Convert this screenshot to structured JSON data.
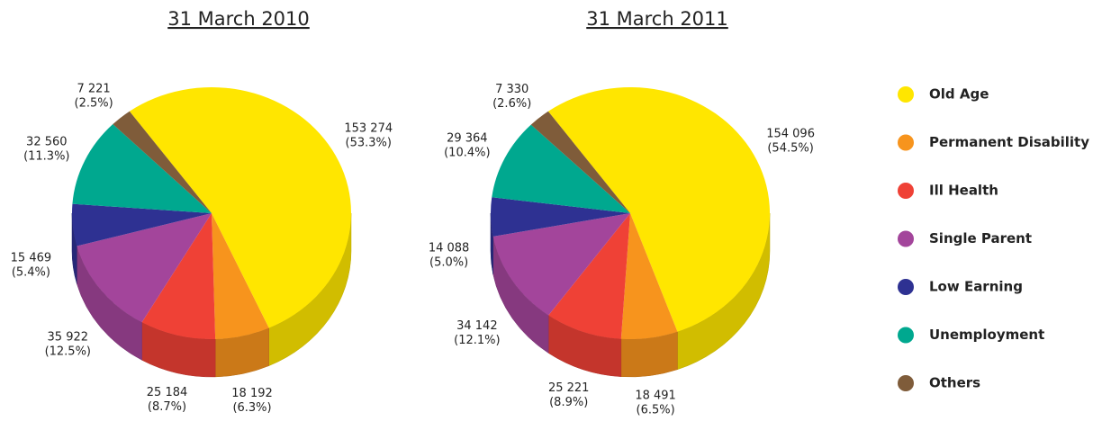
{
  "chart_data": [
    {
      "type": "pie",
      "title": "31 March 2010",
      "categories": [
        "Old Age",
        "Permanent Disability",
        "Ill Health",
        "Single Parent",
        "Low Earning",
        "Unemployment",
        "Others"
      ],
      "colors": [
        "#ffe600",
        "#f7941d",
        "#ef4136",
        "#a3459b",
        "#2e3192",
        "#00a88f",
        "#7f5c3a"
      ],
      "values": [
        153274,
        18192,
        25184,
        35922,
        15469,
        32560,
        7221
      ],
      "value_labels": [
        "153 274",
        "18 192",
        "25 184",
        "35 922",
        "15 469",
        "32 560",
        "7 221"
      ],
      "percents": [
        53.3,
        6.3,
        8.7,
        12.5,
        5.4,
        11.3,
        2.5
      ],
      "percent_labels": [
        "(53.3%)",
        "(6.3%)",
        "(8.7%)",
        "(12.5%)",
        "(5.4%)",
        "(11.3%)",
        "(2.5%)"
      ]
    },
    {
      "type": "pie",
      "title": "31 March 2011",
      "categories": [
        "Old Age",
        "Permanent Disability",
        "Ill Health",
        "Single Parent",
        "Low Earning",
        "Unemployment",
        "Others"
      ],
      "colors": [
        "#ffe600",
        "#f7941d",
        "#ef4136",
        "#a3459b",
        "#2e3192",
        "#00a88f",
        "#7f5c3a"
      ],
      "values": [
        154096,
        18491,
        25221,
        34142,
        14088,
        29364,
        7330
      ],
      "value_labels": [
        "154 096",
        "18 491",
        "25 221",
        "34 142",
        "14 088",
        "29 364",
        "7 330"
      ],
      "percents": [
        54.5,
        6.5,
        8.9,
        12.1,
        5.0,
        10.4,
        2.6
      ],
      "percent_labels": [
        "(54.5%)",
        "(6.5%)",
        "(8.9%)",
        "(12.1%)",
        "(5.0%)",
        "(10.4%)",
        "(2.6%)"
      ]
    }
  ]
}
